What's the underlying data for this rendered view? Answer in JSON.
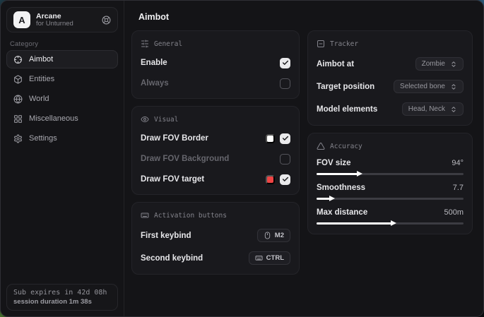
{
  "app": {
    "name": "Arcane",
    "subtitle": "for Unturned",
    "logo_letter": "A"
  },
  "sidebar": {
    "category_label": "Category",
    "items": [
      {
        "label": "Aimbot",
        "icon": "crosshair-icon",
        "active": true
      },
      {
        "label": "Entities",
        "icon": "box-icon",
        "active": false
      },
      {
        "label": "World",
        "icon": "globe-icon",
        "active": false
      },
      {
        "label": "Miscellaneous",
        "icon": "grid-icon",
        "active": false
      },
      {
        "label": "Settings",
        "icon": "gear-icon",
        "active": false
      }
    ],
    "footer": {
      "line1": "Sub expires in 42d 08h",
      "line2": "session duration 1m 38s"
    }
  },
  "page": {
    "title": "Aimbot"
  },
  "cards": {
    "general": {
      "title": "General",
      "icon": "sliders-icon",
      "rows": [
        {
          "label": "Enable",
          "checked": true
        },
        {
          "label": "Always",
          "checked": false
        }
      ]
    },
    "visual": {
      "title": "Visual",
      "icon": "eye-icon",
      "rows": [
        {
          "label": "Draw FOV Border",
          "swatch": "#ffffff",
          "checked": true
        },
        {
          "label": "Draw FOV Background",
          "checked": false
        },
        {
          "label": "Draw FOV target",
          "swatch": "#ef4444",
          "checked": true
        }
      ]
    },
    "activation": {
      "title": "Activation buttons",
      "icon": "keyboard-icon",
      "rows": [
        {
          "label": "First keybind",
          "key": "M2",
          "key_icon": "mouse-icon"
        },
        {
          "label": "Second keybind",
          "key": "CTRL",
          "key_icon": "keyboard-icon"
        }
      ]
    },
    "tracker": {
      "title": "Tracker",
      "icon": "minus-square-icon",
      "rows": [
        {
          "label": "Aimbot at",
          "value": "Zombie"
        },
        {
          "label": "Target position",
          "value": "Selected bone"
        },
        {
          "label": "Model elements",
          "value": "Head, Neck"
        }
      ]
    },
    "accuracy": {
      "title": "Accuracy",
      "icon": "triangle-icon",
      "sliders": [
        {
          "label": "FOV size",
          "value": "94°",
          "percent": 28
        },
        {
          "label": "Smoothness",
          "value": "7.7",
          "percent": 9
        },
        {
          "label": "Max distance",
          "value": "500m",
          "percent": 51
        }
      ]
    }
  },
  "colors": {
    "accent_red": "#ef4444",
    "swatch_white": "#ffffff",
    "window_bg": "#141417",
    "card_bg": "#19191d"
  }
}
